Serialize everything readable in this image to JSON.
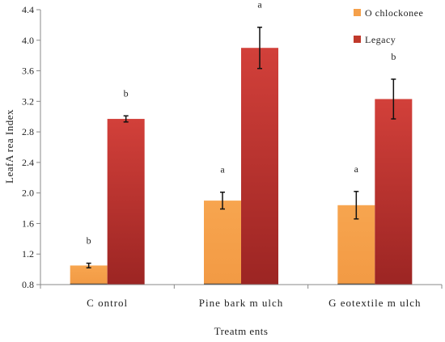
{
  "chart_data": {
    "type": "bar",
    "title": "",
    "xlabel": "Treatm ents",
    "ylabel": "LeafA rea Index",
    "categories": [
      "C ontrol",
      "Pine bark m ulch",
      "G eotextile m ulch"
    ],
    "ylim": [
      0.8,
      4.4
    ],
    "yticks": [
      "0.8",
      "1.2",
      "1.6",
      "2.0",
      "2.4",
      "2.8",
      "3.2",
      "3.6",
      "4.0",
      "4.4"
    ],
    "grid": false,
    "legend_position": "top-right",
    "series": [
      {
        "name": "O chlockonee",
        "color": "#f5a04a",
        "values": [
          1.05,
          1.9,
          1.84
        ],
        "errors": [
          0.03,
          0.11,
          0.18
        ],
        "letters": [
          "b",
          "a",
          "a"
        ]
      },
      {
        "name": "Legacy",
        "color": "#c0392b",
        "values": [
          2.97,
          3.9,
          3.23
        ],
        "errors": [
          0.04,
          0.27,
          0.26
        ],
        "letters": [
          "b",
          "a",
          "b"
        ]
      }
    ]
  }
}
